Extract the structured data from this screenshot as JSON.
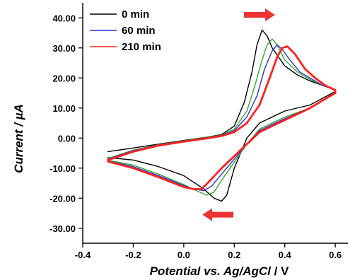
{
  "chart_data": {
    "type": "line",
    "title": "",
    "xlabel": "Potential vs. Ag/AgCl / V",
    "xlabel_italic_part": "Potential vs. Ag/AgCl",
    "xlabel_unit_part": " / V",
    "ylabel": "Current / µA",
    "xlim": [
      -0.4,
      0.65
    ],
    "ylim": [
      -35,
      45
    ],
    "xticks": [
      -0.4,
      -0.2,
      0.0,
      0.2,
      0.4,
      0.6
    ],
    "xtick_labels": [
      "-0.4",
      "-0.2",
      "0.0",
      "0.2",
      "0.4",
      "0.6"
    ],
    "yticks": [
      -30,
      -20,
      -10,
      0,
      10,
      20,
      30,
      40
    ],
    "ytick_labels": [
      "-30.00",
      "-20.00",
      "-10.00",
      "0.00",
      "10.00",
      "20.00",
      "30.00",
      "40.00"
    ],
    "grid": false,
    "legend_position": "top-left",
    "legend": [
      {
        "label": "0 min",
        "color": "#000000"
      },
      {
        "label": "60 min",
        "color": "#3333cc"
      },
      {
        "label": "210 min",
        "color": "#ff2020"
      }
    ],
    "scan_direction_arrows": [
      {
        "direction": "right",
        "x": 0.3,
        "y": 41,
        "color": "#ee3333"
      },
      {
        "direction": "left",
        "x": 0.135,
        "y": -25.5,
        "color": "#ee3333"
      }
    ],
    "series": [
      {
        "name": "0 min",
        "color": "#000000",
        "width": 1.4,
        "points": [
          [
            -0.3,
            -4.5
          ],
          [
            -0.2,
            -3.3
          ],
          [
            -0.1,
            -2.0
          ],
          [
            0.0,
            -0.8
          ],
          [
            0.05,
            -0.2
          ],
          [
            0.1,
            0.4
          ],
          [
            0.15,
            1.2
          ],
          [
            0.2,
            4
          ],
          [
            0.24,
            12
          ],
          [
            0.27,
            22
          ],
          [
            0.29,
            31
          ],
          [
            0.31,
            36
          ],
          [
            0.33,
            34
          ],
          [
            0.35,
            30
          ],
          [
            0.4,
            24
          ],
          [
            0.45,
            21
          ],
          [
            0.5,
            19
          ],
          [
            0.55,
            17.5
          ],
          [
            0.6,
            16
          ],
          [
            0.6,
            15.5
          ],
          [
            0.5,
            11
          ],
          [
            0.4,
            9
          ],
          [
            0.3,
            5
          ],
          [
            0.25,
            0
          ],
          [
            0.2,
            -10
          ],
          [
            0.17,
            -19
          ],
          [
            0.15,
            -21
          ],
          [
            0.12,
            -20
          ],
          [
            0.08,
            -17
          ],
          [
            0.0,
            -12.5
          ],
          [
            -0.1,
            -9.5
          ],
          [
            -0.2,
            -7.3
          ],
          [
            -0.3,
            -6.5
          ]
        ]
      },
      {
        "name": "",
        "color": "#33aa33",
        "width": 1.4,
        "points": [
          [
            -0.3,
            -6.8
          ],
          [
            -0.2,
            -4.0
          ],
          [
            -0.1,
            -2.2
          ],
          [
            0.0,
            -0.9
          ],
          [
            0.05,
            -0.3
          ],
          [
            0.1,
            0.3
          ],
          [
            0.15,
            1.0
          ],
          [
            0.2,
            3.0
          ],
          [
            0.25,
            9
          ],
          [
            0.28,
            17
          ],
          [
            0.31,
            26
          ],
          [
            0.33,
            31
          ],
          [
            0.35,
            33
          ],
          [
            0.37,
            31
          ],
          [
            0.4,
            26
          ],
          [
            0.45,
            22
          ],
          [
            0.5,
            19.5
          ],
          [
            0.55,
            17.5
          ],
          [
            0.6,
            16
          ],
          [
            0.6,
            15
          ],
          [
            0.5,
            10
          ],
          [
            0.4,
            7
          ],
          [
            0.3,
            3
          ],
          [
            0.25,
            -2
          ],
          [
            0.2,
            -8
          ],
          [
            0.15,
            -14
          ],
          [
            0.12,
            -18
          ],
          [
            0.09,
            -19
          ],
          [
            0.05,
            -17.5
          ],
          [
            0.0,
            -15.5
          ],
          [
            -0.1,
            -12
          ],
          [
            -0.2,
            -9
          ],
          [
            -0.3,
            -7.4
          ]
        ]
      },
      {
        "name": "60 min",
        "color": "#3333cc",
        "width": 1.4,
        "points": [
          [
            -0.3,
            -7.0
          ],
          [
            -0.2,
            -4.2
          ],
          [
            -0.1,
            -2.3
          ],
          [
            0.0,
            -1.0
          ],
          [
            0.05,
            -0.4
          ],
          [
            0.1,
            0.2
          ],
          [
            0.15,
            0.9
          ],
          [
            0.2,
            2.5
          ],
          [
            0.25,
            7
          ],
          [
            0.29,
            14
          ],
          [
            0.32,
            23
          ],
          [
            0.35,
            29
          ],
          [
            0.37,
            31
          ],
          [
            0.39,
            29.5
          ],
          [
            0.42,
            26
          ],
          [
            0.46,
            22
          ],
          [
            0.5,
            20
          ],
          [
            0.55,
            17.5
          ],
          [
            0.6,
            16
          ],
          [
            0.6,
            15
          ],
          [
            0.5,
            10
          ],
          [
            0.4,
            6.5
          ],
          [
            0.3,
            2.5
          ],
          [
            0.25,
            -2
          ],
          [
            0.2,
            -7
          ],
          [
            0.15,
            -12
          ],
          [
            0.11,
            -16
          ],
          [
            0.08,
            -17.5
          ],
          [
            0.04,
            -17
          ],
          [
            0.0,
            -15.8
          ],
          [
            -0.1,
            -12.5
          ],
          [
            -0.2,
            -9.5
          ],
          [
            -0.3,
            -7.6
          ]
        ]
      },
      {
        "name": "210 min",
        "color": "#ff2020",
        "width": 2.8,
        "points": [
          [
            -0.3,
            -7.3
          ],
          [
            -0.2,
            -4.5
          ],
          [
            -0.1,
            -2.5
          ],
          [
            0.0,
            -1.2
          ],
          [
            0.05,
            -0.6
          ],
          [
            0.1,
            0.0
          ],
          [
            0.15,
            0.7
          ],
          [
            0.2,
            2.0
          ],
          [
            0.25,
            5
          ],
          [
            0.3,
            11
          ],
          [
            0.34,
            20
          ],
          [
            0.37,
            27
          ],
          [
            0.39,
            30
          ],
          [
            0.41,
            30.5
          ],
          [
            0.44,
            28
          ],
          [
            0.48,
            23
          ],
          [
            0.52,
            20
          ],
          [
            0.56,
            17.5
          ],
          [
            0.6,
            16
          ],
          [
            0.6,
            15
          ],
          [
            0.5,
            10
          ],
          [
            0.4,
            6
          ],
          [
            0.3,
            2
          ],
          [
            0.25,
            -2
          ],
          [
            0.2,
            -6
          ],
          [
            0.15,
            -10
          ],
          [
            0.1,
            -14.5
          ],
          [
            0.07,
            -17
          ],
          [
            0.04,
            -17
          ],
          [
            0.0,
            -16.3
          ],
          [
            -0.1,
            -13
          ],
          [
            -0.2,
            -10
          ],
          [
            -0.3,
            -7.8
          ]
        ]
      }
    ]
  }
}
